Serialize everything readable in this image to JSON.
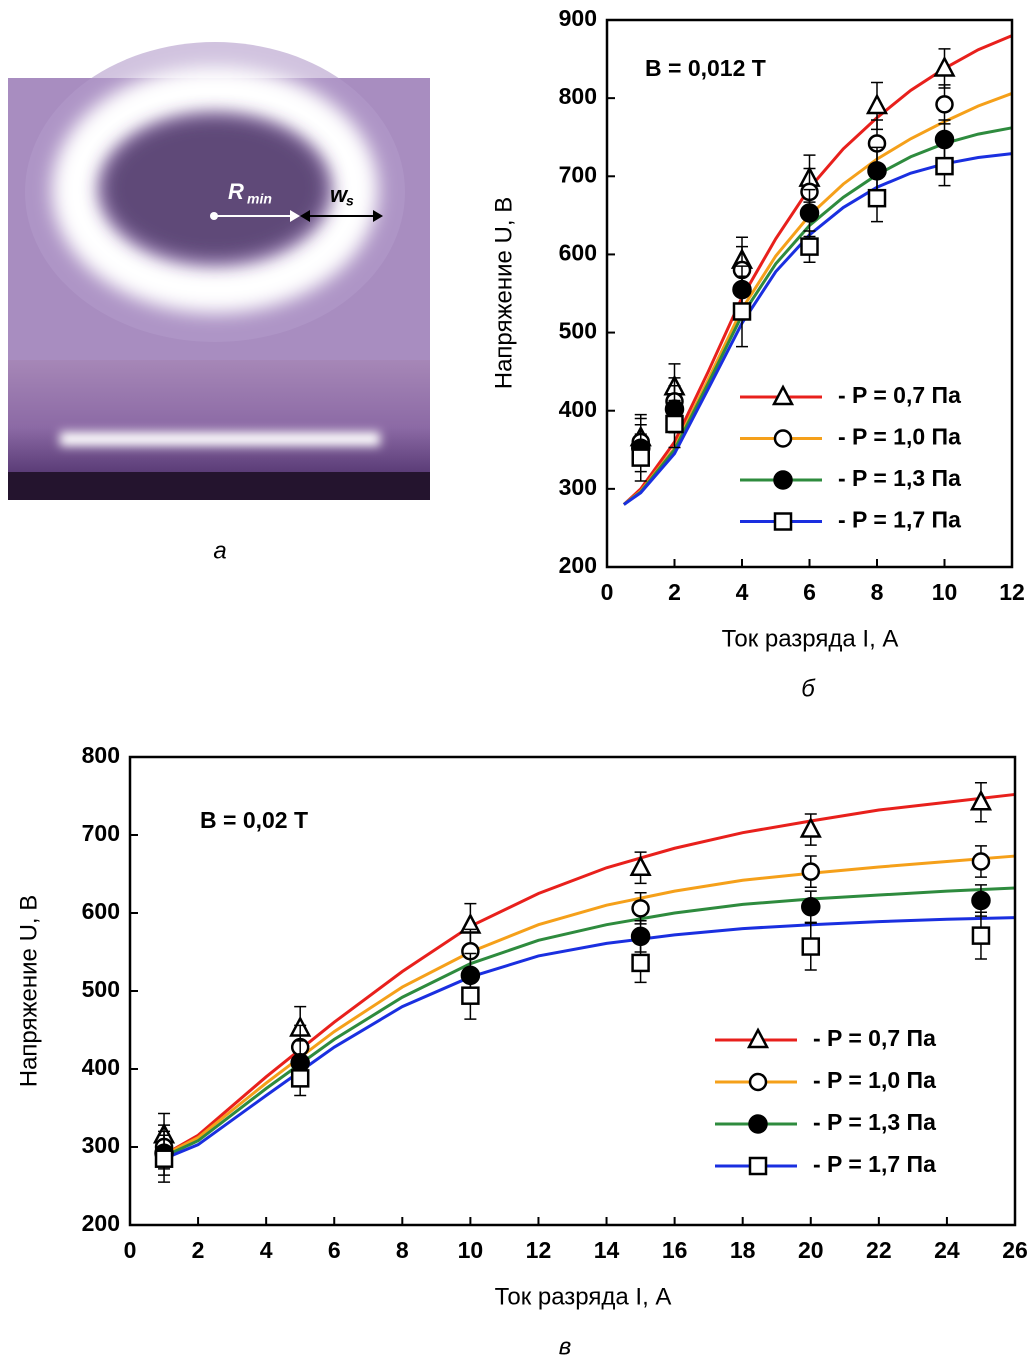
{
  "photo": {
    "r_label": "R",
    "r_sub": "min",
    "w_label": "w",
    "w_sub": "s",
    "caption": "а"
  },
  "chart_data": [
    {
      "type": "line",
      "caption": "б",
      "annotation": "B = 0,012 T",
      "x_label": "Ток разряда I, А",
      "y_label": "Напряжение U, В",
      "xlim": [
        0,
        12
      ],
      "xticks": [
        0,
        2,
        4,
        6,
        8,
        10,
        12
      ],
      "ylim": [
        200,
        900
      ],
      "yticks": [
        200,
        300,
        400,
        500,
        600,
        700,
        800,
        900
      ],
      "x": [
        1,
        2,
        4,
        6,
        8,
        10
      ],
      "series": [
        {
          "name": "- P = 0,7 Па",
          "color": "#e8201c",
          "marker": "triangle",
          "values": [
            365,
            430,
            592,
            697,
            790,
            838
          ],
          "errors": [
            30,
            30,
            30,
            30,
            30,
            25
          ],
          "fit": {
            "x": [
              0.5,
              1,
              2,
              3,
              4,
              5,
              6,
              7,
              8,
              9,
              10,
              11,
              12
            ],
            "values": [
              280,
              300,
              360,
              450,
              545,
              620,
              685,
              735,
              775,
              810,
              838,
              862,
              880
            ]
          }
        },
        {
          "name": "- P = 1,0 Па",
          "color": "#f5a01a",
          "marker": "circle",
          "values": [
            360,
            412,
            580,
            680,
            742,
            792
          ],
          "errors": [
            30,
            30,
            30,
            30,
            30,
            25
          ],
          "fit": {
            "x": [
              0.5,
              1,
              2,
              3,
              4,
              5,
              6,
              7,
              8,
              9,
              10,
              11,
              12
            ],
            "values": [
              280,
              297,
              352,
              440,
              530,
              598,
              650,
              690,
              722,
              748,
              770,
              790,
              806
            ]
          }
        },
        {
          "name": "- P = 1,3 Па",
          "color": "#2e8b3e",
          "marker": "filled",
          "values": [
            352,
            402,
            555,
            653,
            707,
            747
          ],
          "errors": [
            30,
            30,
            30,
            30,
            30,
            25
          ],
          "fit": {
            "x": [
              0.5,
              1,
              2,
              3,
              4,
              5,
              6,
              7,
              8,
              9,
              10,
              11,
              12
            ],
            "values": [
              280,
              296,
              350,
              435,
              522,
              588,
              637,
              673,
              702,
              725,
              742,
              754,
              762
            ]
          }
        },
        {
          "name": "- P = 1,7 Па",
          "color": "#1a2fe0",
          "marker": "square",
          "values": [
            340,
            383,
            527,
            610,
            672,
            713
          ],
          "errors": [
            30,
            30,
            45,
            20,
            30,
            25
          ],
          "fit": {
            "x": [
              0.5,
              1,
              2,
              3,
              4,
              5,
              6,
              7,
              8,
              9,
              10,
              11,
              12
            ],
            "values": [
              280,
              295,
              345,
              428,
              512,
              578,
              625,
              660,
              686,
              704,
              716,
              724,
              729
            ]
          }
        }
      ]
    },
    {
      "type": "line",
      "caption": "в",
      "annotation": "B = 0,02 T",
      "x_label": "Ток разряда I, А",
      "y_label": "Напряжение U, В",
      "xlim": [
        0,
        26
      ],
      "xticks": [
        0,
        2,
        4,
        6,
        8,
        10,
        12,
        14,
        16,
        18,
        20,
        22,
        24,
        26
      ],
      "ylim": [
        200,
        800
      ],
      "yticks": [
        200,
        300,
        400,
        500,
        600,
        700,
        800
      ],
      "x": [
        1,
        5,
        10,
        15,
        20,
        25
      ],
      "series": [
        {
          "name": "- P = 0,7 Па",
          "color": "#e8201c",
          "marker": "triangle",
          "values": [
            315,
            452,
            584,
            658,
            707,
            742
          ],
          "errors": [
            28,
            28,
            28,
            20,
            20,
            25
          ],
          "fit": {
            "x": [
              1,
              2,
              4,
              6,
              8,
              10,
              12,
              14,
              16,
              18,
              20,
              22,
              24,
              26
            ],
            "values": [
              290,
              315,
              390,
              460,
              525,
              583,
              625,
              658,
              683,
              703,
              718,
              732,
              742,
              752
            ]
          }
        },
        {
          "name": "- P = 1,0 Па",
          "color": "#f5a01a",
          "marker": "circle",
          "values": [
            300,
            428,
            551,
            606,
            653,
            666
          ],
          "errors": [
            28,
            28,
            28,
            20,
            20,
            20
          ],
          "fit": {
            "x": [
              1,
              2,
              4,
              6,
              8,
              10,
              12,
              14,
              16,
              18,
              20,
              22,
              24,
              26
            ],
            "values": [
              290,
              312,
              382,
              448,
              505,
              550,
              585,
              610,
              628,
              642,
              651,
              659,
              666,
              673
            ]
          }
        },
        {
          "name": "- P = 1,3 Па",
          "color": "#2e8b3e",
          "marker": "filled",
          "values": [
            292,
            408,
            520,
            570,
            608,
            616
          ],
          "errors": [
            28,
            28,
            28,
            20,
            20,
            20
          ],
          "fit": {
            "x": [
              1,
              2,
              4,
              6,
              8,
              10,
              12,
              14,
              16,
              18,
              20,
              22,
              24,
              26
            ],
            "values": [
              288,
              308,
              375,
              438,
              492,
              535,
              565,
              585,
              600,
              611,
              618,
              623,
              628,
              632
            ]
          }
        },
        {
          "name": "- P = 1,7 Па",
          "color": "#1a2fe0",
          "marker": "square",
          "values": [
            285,
            388,
            494,
            536,
            557,
            571
          ],
          "errors": [
            30,
            22,
            30,
            25,
            30,
            30
          ],
          "fit": {
            "x": [
              1,
              2,
              4,
              6,
              8,
              10,
              12,
              14,
              16,
              18,
              20,
              22,
              24,
              26
            ],
            "values": [
              285,
              303,
              366,
              428,
              480,
              518,
              545,
              561,
              572,
              580,
              585,
              589,
              592,
              594
            ]
          }
        }
      ]
    }
  ]
}
